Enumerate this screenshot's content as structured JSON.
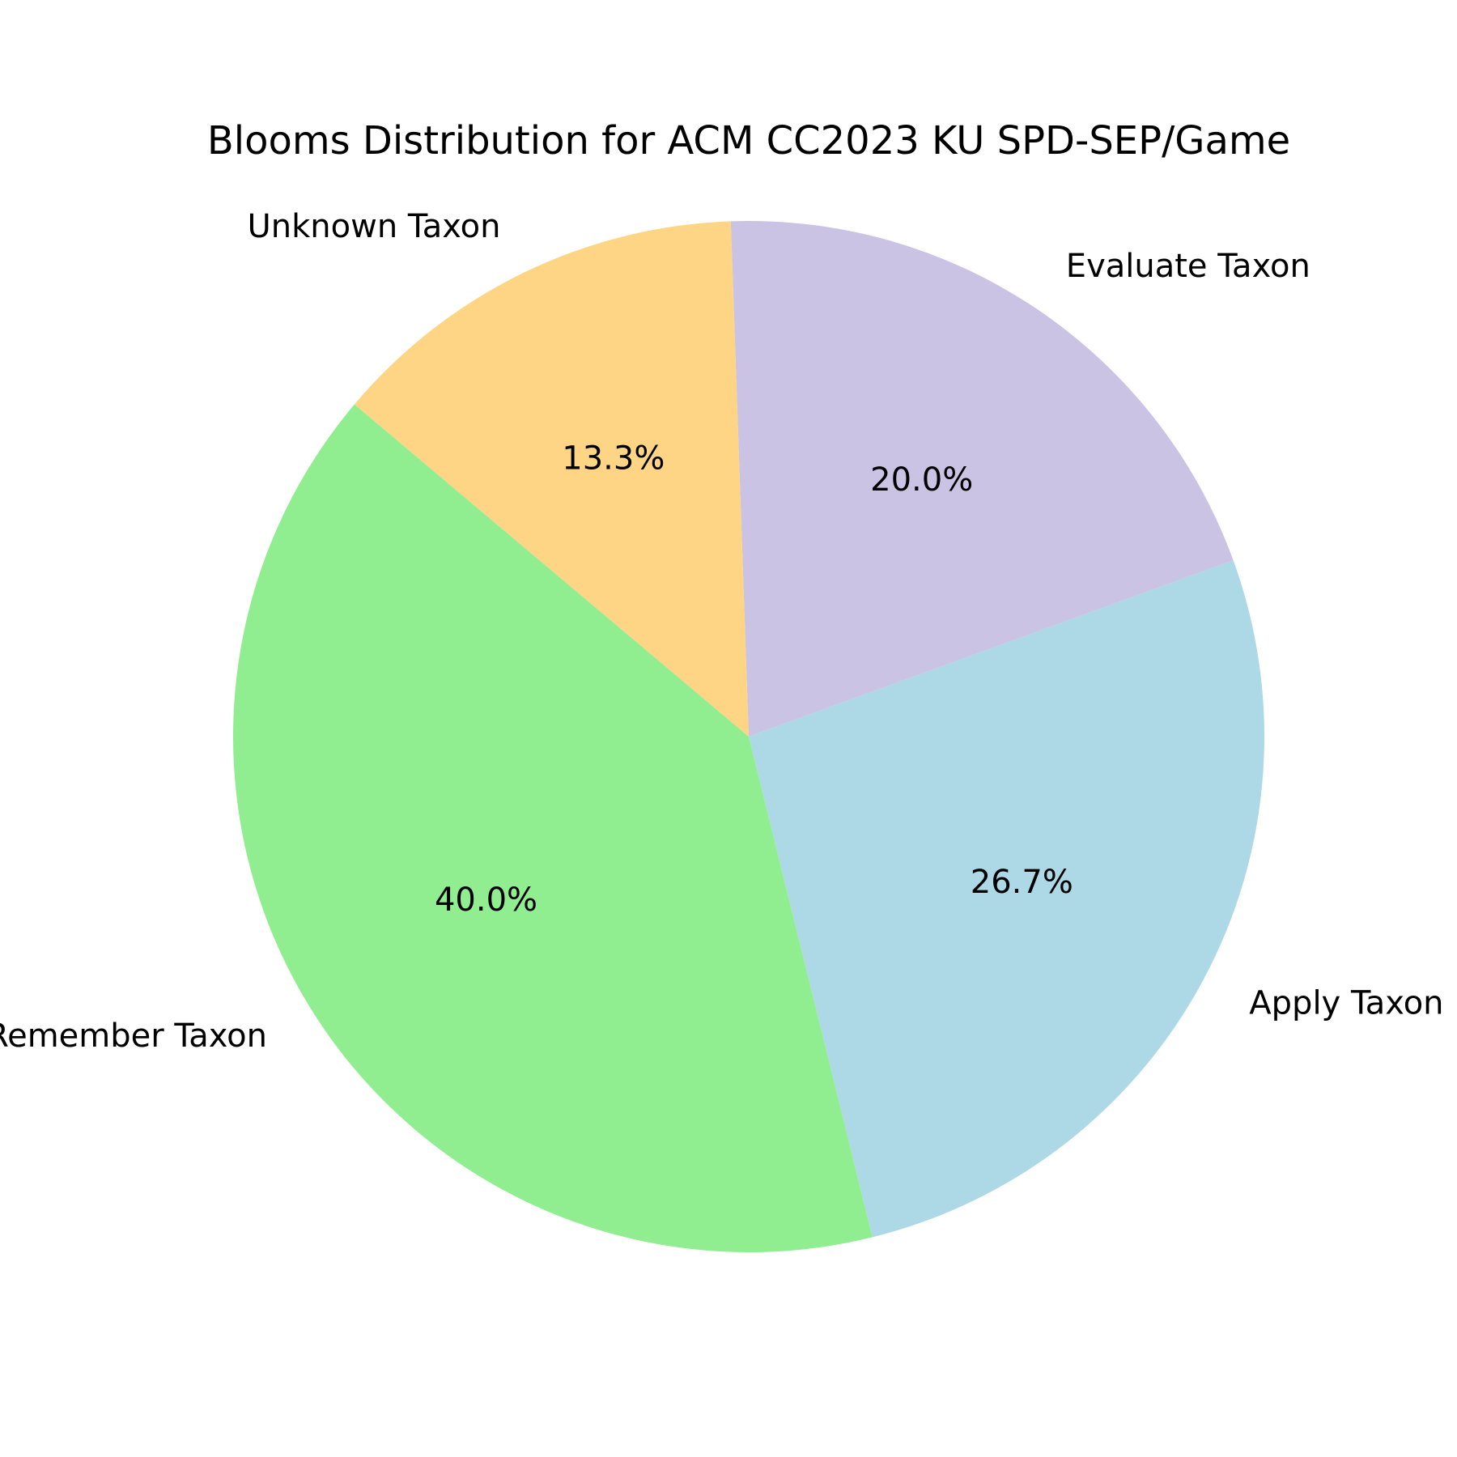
{
  "chart_data": {
    "type": "pie",
    "title": "Blooms Distribution for ACM CC2023 KU SPD-SEP/Game",
    "slices": [
      {
        "label": "Evaluate Taxon",
        "value": 20.0,
        "pct_label": "20.0%",
        "color": "#cbc3e3"
      },
      {
        "label": "Apply Taxon",
        "value": 26.7,
        "pct_label": "26.7%",
        "color": "#add8e6"
      },
      {
        "label": "Remember Taxon",
        "value": 40.0,
        "pct_label": "40.0%",
        "color": "#90ee90"
      },
      {
        "label": "Unknown Taxon",
        "value": 13.3,
        "pct_label": "13.3%",
        "color": "#fdd584"
      }
    ],
    "start_angle_deg": 92,
    "direction": "clockwise"
  }
}
